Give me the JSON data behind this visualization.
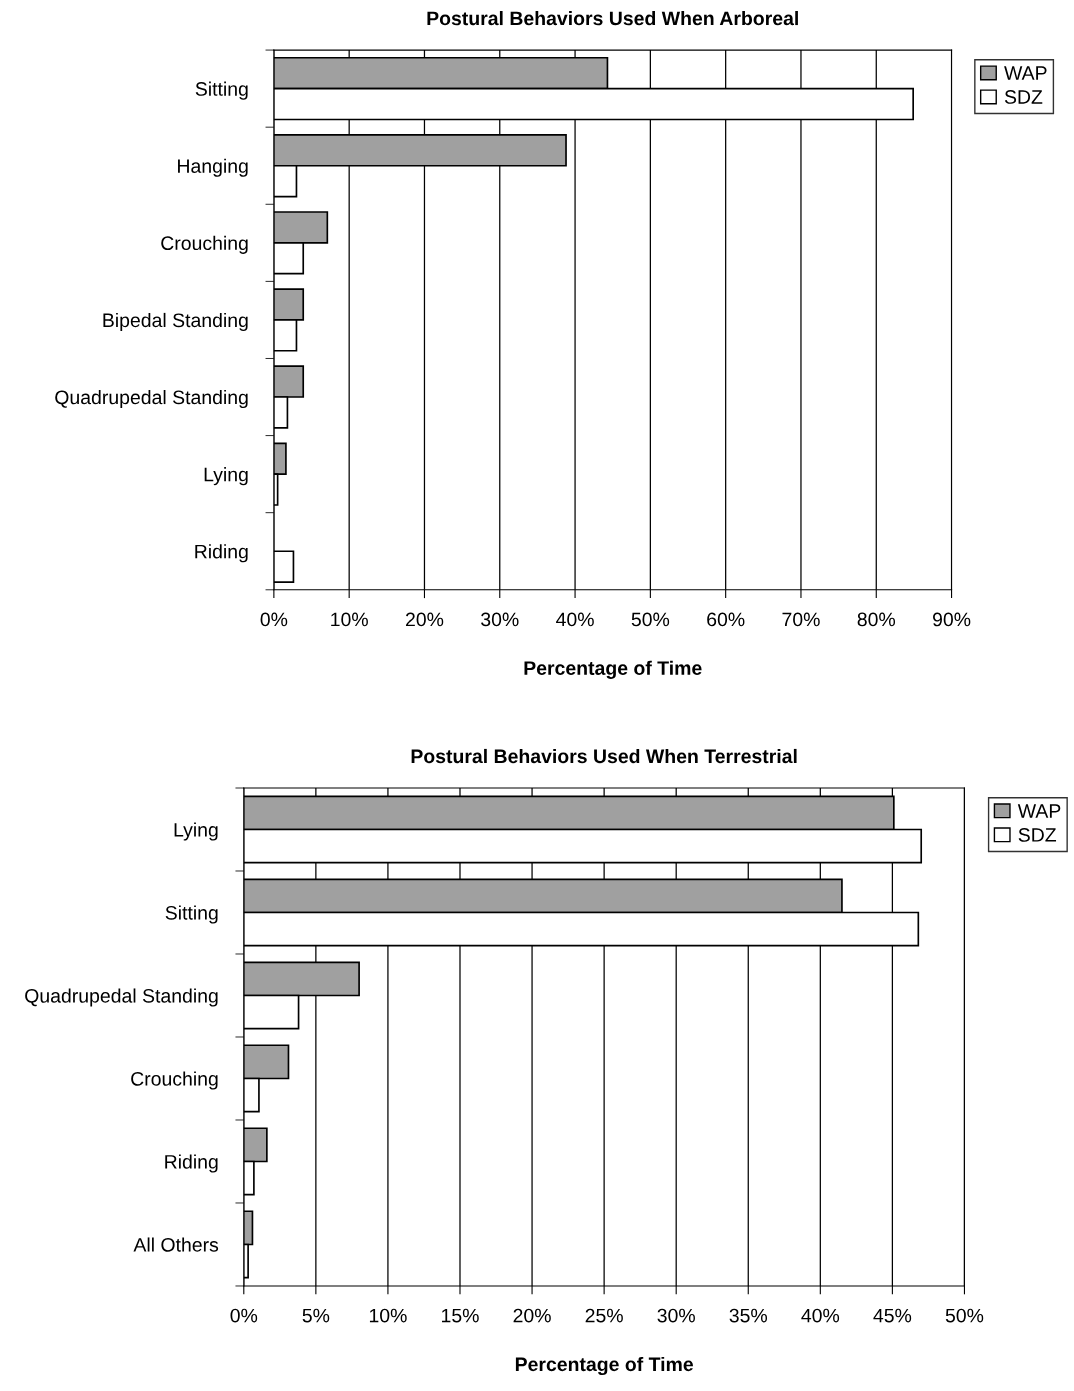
{
  "chart_data": [
    {
      "type": "bar",
      "orientation": "horizontal",
      "title": "Postural Behaviors Used When Arboreal",
      "xlabel": "Percentage of Time",
      "categories": [
        "Sitting",
        "Hanging",
        "Crouching",
        "Bipedal Standing",
        "Quadrupedal Standing",
        "Lying",
        "Riding"
      ],
      "series": [
        {
          "name": "WAP",
          "color": "#a0a0a0",
          "values": [
            44.3,
            38.8,
            7.1,
            3.9,
            3.9,
            1.6,
            null
          ]
        },
        {
          "name": "SDZ",
          "color": "#ffffff",
          "values": [
            84.9,
            3.0,
            3.9,
            3.0,
            1.8,
            0.5,
            2.6
          ]
        }
      ],
      "xlim": [
        0,
        90
      ],
      "xticks": [
        {
          "value": 0,
          "label": "0%"
        },
        {
          "value": 10,
          "label": "10%"
        },
        {
          "value": 20,
          "label": "20%"
        },
        {
          "value": 30,
          "label": "30%"
        },
        {
          "value": 40,
          "label": "40%"
        },
        {
          "value": 50,
          "label": "50%"
        },
        {
          "value": 60,
          "label": "60%"
        },
        {
          "value": 70,
          "label": "70%"
        },
        {
          "value": 80,
          "label": "80%"
        },
        {
          "value": 90,
          "label": "90%"
        }
      ],
      "grid": "x",
      "legend": "top right"
    },
    {
      "type": "bar",
      "orientation": "horizontal",
      "title": "Postural Behaviors Used When Terrestrial",
      "xlabel": "Percentage of Time",
      "categories": [
        "Lying",
        "Sitting",
        "Quadrupedal Standing",
        "Crouching",
        "Riding",
        "All Others"
      ],
      "series": [
        {
          "name": "WAP",
          "color": "#a0a0a0",
          "values": [
            45.1,
            41.5,
            8.0,
            3.1,
            1.6,
            0.6
          ]
        },
        {
          "name": "SDZ",
          "color": "#ffffff",
          "values": [
            47.0,
            46.8,
            3.8,
            1.05,
            0.7,
            0.3
          ]
        }
      ],
      "xlim": [
        0,
        50
      ],
      "xticks": [
        {
          "value": 0,
          "label": "0%"
        },
        {
          "value": 5,
          "label": "5%"
        },
        {
          "value": 10,
          "label": "10%"
        },
        {
          "value": 15,
          "label": "15%"
        },
        {
          "value": 20,
          "label": "20%"
        },
        {
          "value": 25,
          "label": "25%"
        },
        {
          "value": 30,
          "label": "30%"
        },
        {
          "value": 35,
          "label": "35%"
        },
        {
          "value": 40,
          "label": "40%"
        },
        {
          "value": 45,
          "label": "45%"
        },
        {
          "value": 50,
          "label": "50%"
        }
      ],
      "grid": "x",
      "legend": "top right"
    }
  ]
}
